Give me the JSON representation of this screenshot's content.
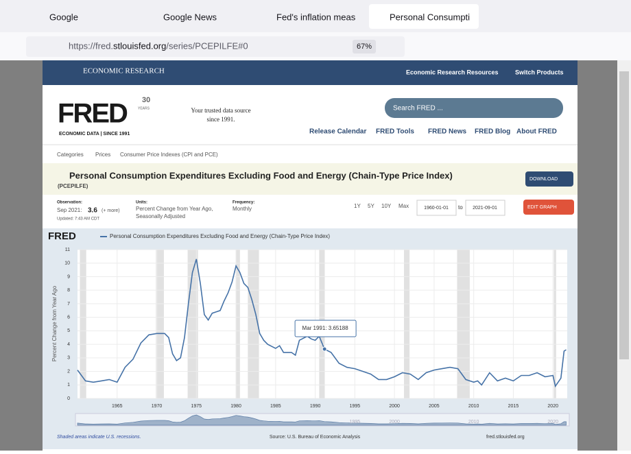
{
  "browser": {
    "tabs": [
      "Google",
      "Google News",
      "Fed's inflation meas",
      "Personal Consumpti"
    ],
    "url_prefix": "https://fred.",
    "url_domain": "stlouisfed.org",
    "url_path": "/series/PCEPILFE#0",
    "zoom": "67%"
  },
  "header": {
    "brand": "ECONOMIC RESEARCH",
    "nav": [
      "Economic Research Resources",
      "Switch Products"
    ],
    "logo": "FRED",
    "logo_sub": "ECONOMIC DATA  |  SINCE 1991",
    "badge": "30",
    "badge_sub": "YEARS",
    "tagline": [
      "Your trusted data source",
      "since 1991."
    ],
    "search": "Search FRED ...",
    "menu": [
      "Release Calendar",
      "FRED Tools",
      "FRED News",
      "FRED Blog",
      "About FRED"
    ]
  },
  "breadcrumb": [
    "Categories",
    "Prices",
    "Consumer Price Indexes (CPI and PCE)"
  ],
  "series": {
    "title": "Personal Consumption Expenditures Excluding Food and Energy (Chain-Type Price Index)",
    "code": "(PCEPILFE)",
    "download": "DOWNLOAD",
    "observation_label": "Observation:",
    "observation_date": "Sep 2021:",
    "observation_value": "3.6",
    "observation_more": "(+ more)",
    "updated": "Updated: 7:43 AM CDT",
    "units_label": "Units:",
    "units": [
      "Percent Change from Year Ago,",
      "Seasonally Adjusted"
    ],
    "frequency_label": "Frequency:",
    "frequency": "Monthly",
    "ranges": [
      "1Y",
      "5Y",
      "10Y",
      "Max"
    ],
    "start": "1960-01-01",
    "to": "to",
    "end": "2021-09-01",
    "edit": "EDIT GRAPH"
  },
  "chart_data": {
    "type": "line",
    "legend": "Personal Consumption Expenditures Excluding Food and Energy (Chain-Type Price Index)",
    "y_label": "Percent Change from Year Ago",
    "color": "#4572a7",
    "x": [
      1960,
      1960.5,
      1961,
      1962,
      1963,
      1964,
      1965,
      1966,
      1967,
      1968,
      1969,
      1970,
      1971,
      1971.5,
      1972,
      1972.5,
      1973,
      1973.5,
      1974,
      1974.5,
      1975,
      1975.5,
      1976,
      1976.5,
      1977,
      1977.5,
      1978,
      1978.5,
      1979,
      1979.5,
      1980,
      1980.5,
      1981,
      1981.5,
      1982,
      1982.5,
      1983,
      1983.5,
      1984,
      1985,
      1985.5,
      1986,
      1987,
      1987.5,
      1988,
      1989,
      1989.5,
      1990,
      1990.5,
      1991.17,
      1992,
      1993,
      1994,
      1995,
      1996,
      1997,
      1998,
      1999,
      2000,
      2001,
      2002,
      2003,
      2004,
      2005,
      2006,
      2007,
      2008,
      2009,
      2010,
      2010.5,
      2011,
      2012,
      2013,
      2014,
      2015,
      2016,
      2017,
      2018,
      2019,
      2020,
      2020.3,
      2021,
      2021.4,
      2021.67
    ],
    "values": [
      2.1,
      1.7,
      1.3,
      1.2,
      1.3,
      1.4,
      1.2,
      2.3,
      2.9,
      4.1,
      4.7,
      4.8,
      4.8,
      4.5,
      3.3,
      2.8,
      3.0,
      4.5,
      7.0,
      9.3,
      10.3,
      8.5,
      6.2,
      5.8,
      6.3,
      6.4,
      6.5,
      7.2,
      7.8,
      8.6,
      9.8,
      9.3,
      8.5,
      8.2,
      7.3,
      6.2,
      4.8,
      4.3,
      4.0,
      3.7,
      3.9,
      3.4,
      3.4,
      3.2,
      4.3,
      4.6,
      4.4,
      4.3,
      4.6,
      3.65188,
      3.4,
      2.6,
      2.3,
      2.2,
      2.0,
      1.8,
      1.4,
      1.4,
      1.6,
      1.9,
      1.8,
      1.4,
      1.9,
      2.1,
      2.2,
      2.3,
      2.2,
      1.4,
      1.2,
      1.3,
      1.0,
      1.9,
      1.3,
      1.5,
      1.3,
      1.7,
      1.7,
      1.9,
      1.6,
      1.7,
      0.9,
      1.5,
      3.5,
      3.6
    ],
    "recessions": [
      [
        1960.3,
        1961.1
      ],
      [
        1969.9,
        1970.9
      ],
      [
        1973.9,
        1975.2
      ],
      [
        1980.0,
        1980.5
      ],
      [
        1981.5,
        1982.9
      ],
      [
        1990.5,
        1991.2
      ],
      [
        2001.2,
        2001.9
      ],
      [
        2007.9,
        2009.5
      ],
      [
        2020.1,
        2020.4
      ]
    ],
    "xlim": [
      1960,
      2021.8
    ],
    "ylim": [
      0,
      11
    ],
    "xticks": [
      1965,
      1970,
      1975,
      1980,
      1985,
      1990,
      1995,
      2000,
      2005,
      2010,
      2015,
      2020
    ],
    "yticks": [
      0,
      1,
      2,
      3,
      4,
      5,
      6,
      7,
      8,
      9,
      10,
      11
    ],
    "nav_ticks": [
      1995,
      2000,
      2010,
      2020
    ],
    "grid": true,
    "tooltip": {
      "label": "Mar 1991: 3.65188",
      "x": 1991.17,
      "value": 3.65188
    }
  },
  "footer": {
    "note": "Shaded areas indicate U.S. recessions.",
    "source": "Source: U.S. Bureau of Economic Analysis",
    "site": "fred.stlouisfed.org"
  }
}
